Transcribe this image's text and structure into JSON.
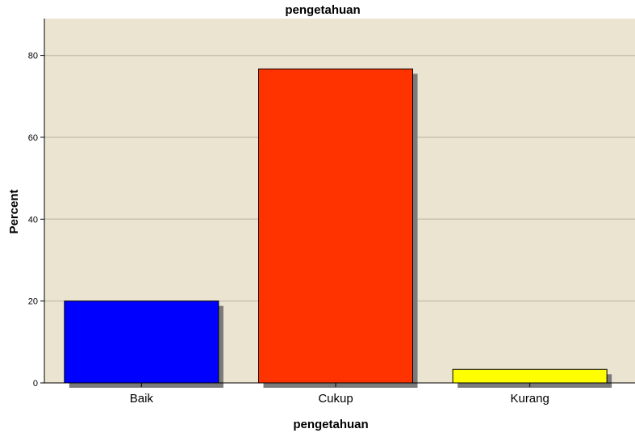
{
  "chart_data": {
    "type": "bar",
    "title": "pengetahuan",
    "xlabel": "pengetahuan",
    "ylabel": "Percent",
    "categories": [
      "Baik",
      "Cukup",
      "Kurang"
    ],
    "values": [
      20,
      76.7,
      3.3
    ],
    "ylim": [
      0,
      89
    ],
    "yticks": [
      "0",
      "20",
      "40",
      "60",
      "80"
    ],
    "grid": true,
    "colors": {
      "plot_background": "#ebe4d0",
      "gridline": "#c8c2b0",
      "shadow": "#7a7a7a",
      "bars": [
        "#0000ff",
        "#ff3300",
        "#ffff00"
      ]
    }
  }
}
